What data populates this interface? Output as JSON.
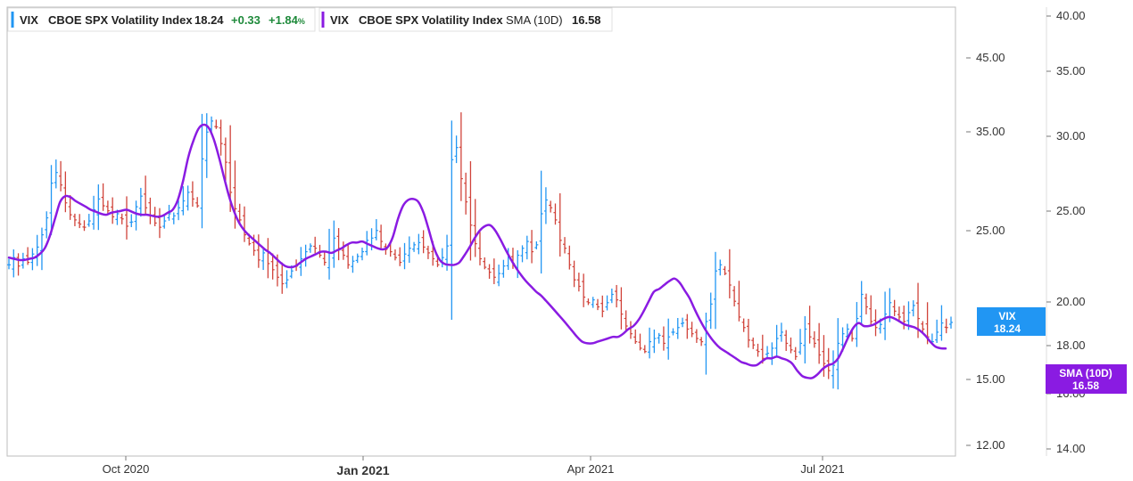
{
  "legend": {
    "vix": {
      "symbol": "VIX",
      "name": "CBOE SPX Volatility Index",
      "last": "18.24",
      "change": "+0.33",
      "change_pct": "+1.84",
      "pct_sign": "%",
      "color": "#2196f3"
    },
    "sma": {
      "symbol": "VIX",
      "name": "CBOE SPX Volatility Index",
      "indicator": "SMA (10D)",
      "value": "16.58",
      "color": "#8a1be2"
    }
  },
  "badges": {
    "vix": {
      "label": "VIX",
      "value": "18.24",
      "color": "#2196f3"
    },
    "sma": {
      "label": "SMA (10D)",
      "value": "16.58",
      "color": "#8a1be2"
    }
  },
  "chart_data": {
    "type": "line",
    "title": "",
    "xlabel": "",
    "ylabel": "",
    "x_ticks": [
      "Oct 2020",
      "Jan 2021",
      "Apr 2021",
      "Jul 2021"
    ],
    "y_ticks_inner": [
      "45.00",
      "35.00",
      "25.00",
      "15.00",
      "12.00"
    ],
    "y_ticks_outer": [
      "40.00",
      "35.00",
      "30.00",
      "25.00",
      "20.00",
      "18.00",
      "16.00",
      "14.00"
    ],
    "y_scale": "log",
    "ylim": [
      11.5,
      55
    ],
    "up_color": "#2196f3",
    "down_color": "#d0433a",
    "sma_color": "#8a1be2",
    "series": [
      {
        "type": "ohlc-close",
        "values": [
          22.5,
          23.1,
          22.4,
          23.0,
          22.7,
          23.4,
          24.0,
          25.1,
          26.7,
          30.3,
          31.5,
          30.1,
          28.2,
          27.0,
          26.5,
          26.1,
          25.8,
          26.4,
          27.5,
          28.6,
          27.9,
          27.4,
          26.8,
          27.1,
          26.6,
          25.9,
          26.3,
          27.8,
          28.9,
          27.7,
          26.9,
          26.2,
          25.8,
          26.4,
          27.1,
          26.9,
          27.7,
          28.4,
          29.3,
          28.6,
          27.9,
          33.1,
          36.5,
          38.0,
          37.2,
          35.0,
          32.7,
          29.3,
          27.6,
          26.5,
          25.1,
          24.3,
          23.7,
          22.9,
          23.5,
          22.6,
          22.1,
          21.5,
          21.0,
          21.3,
          22.0,
          22.4,
          23.0,
          23.6,
          24.1,
          23.9,
          23.3,
          22.7,
          23.5,
          24.8,
          23.9,
          23.3,
          22.5,
          22.8,
          23.2,
          23.6,
          24.6,
          24.8,
          25.5,
          24.5,
          23.8,
          23.6,
          23.1,
          22.7,
          23.4,
          23.9,
          24.2,
          24.4,
          24.0,
          23.5,
          23.0,
          22.5,
          23.1,
          24.1,
          33.0,
          34.5,
          30.8,
          28.3,
          26.0,
          24.3,
          23.0,
          22.3,
          21.9,
          21.5,
          21.8,
          22.4,
          23.1,
          22.6,
          23.3,
          23.9,
          24.5,
          23.6,
          24.2,
          27.1,
          28.5,
          27.7,
          26.5,
          24.6,
          23.9,
          22.5,
          21.3,
          20.8,
          20.0,
          19.6,
          19.8,
          19.3,
          19.0,
          19.6,
          20.2,
          19.8,
          18.8,
          18.0,
          17.5,
          17.0,
          16.6,
          16.4,
          17.0,
          17.2,
          17.4,
          16.9,
          17.3,
          17.6,
          17.9,
          18.2,
          17.8,
          17.5,
          17.2,
          17.0,
          18.3,
          19.5,
          22.0,
          22.5,
          21.8,
          20.9,
          19.7,
          18.6,
          17.9,
          17.1,
          16.8,
          16.4,
          16.0,
          16.3,
          16.6,
          17.2,
          17.6,
          16.9,
          16.5,
          16.1,
          16.9,
          17.8,
          17.3,
          16.9,
          16.2,
          15.7,
          15.3,
          15.6,
          16.9,
          17.5,
          17.8,
          17.2,
          18.5,
          20.2,
          19.3,
          18.3,
          17.9,
          18.1,
          18.8,
          19.6,
          19.0,
          18.6,
          18.3,
          18.9,
          19.4,
          18.5,
          17.8,
          17.3,
          17.0,
          17.6,
          18.2,
          17.9,
          18.24
        ]
      },
      {
        "name": "SMA (10D)",
        "values": [
          23.1,
          23.0,
          22.9,
          22.9,
          23.0,
          23.1,
          23.4,
          23.9,
          25.0,
          26.6,
          28.3,
          28.9,
          28.8,
          28.4,
          28.1,
          27.8,
          27.5,
          27.3,
          27.1,
          27.0,
          27.2,
          27.3,
          27.4,
          27.5,
          27.3,
          27.1,
          27.0,
          27.0,
          26.9,
          26.8,
          26.9,
          27.2,
          27.5,
          28.5,
          30.5,
          33.2,
          35.3,
          36.9,
          37.5,
          37.1,
          35.6,
          33.4,
          31.0,
          28.9,
          27.3,
          26.2,
          25.5,
          25.0,
          24.6,
          24.2,
          23.8,
          23.5,
          23.1,
          22.7,
          22.4,
          22.3,
          22.4,
          22.7,
          23.0,
          23.2,
          23.4,
          23.6,
          23.6,
          23.5,
          23.7,
          23.9,
          24.2,
          24.4,
          24.4,
          24.5,
          24.3,
          24.1,
          23.9,
          23.8,
          24.0,
          24.9,
          26.6,
          27.9,
          28.5,
          28.6,
          28.3,
          27.2,
          25.6,
          24.0,
          23.0,
          22.6,
          22.5,
          22.5,
          22.7,
          23.3,
          24.0,
          24.8,
          25.5,
          25.9,
          26.0,
          25.5,
          24.7,
          23.8,
          23.0,
          22.3,
          21.7,
          21.2,
          20.8,
          20.4,
          20.1,
          19.7,
          19.3,
          18.9,
          18.5,
          18.1,
          17.7,
          17.3,
          17.0,
          16.9,
          16.9,
          17.0,
          17.1,
          17.2,
          17.3,
          17.3,
          17.5,
          17.8,
          18.0,
          18.4,
          19.0,
          19.7,
          20.4,
          20.6,
          20.9,
          21.2,
          21.4,
          21.1,
          20.5,
          19.9,
          19.1,
          18.4,
          17.8,
          17.3,
          16.9,
          16.6,
          16.4,
          16.2,
          16.0,
          15.8,
          15.7,
          15.6,
          15.6,
          15.8,
          16.0,
          16.0,
          16.1,
          16.0,
          15.9,
          15.7,
          15.3,
          15.0,
          14.9,
          14.9,
          15.1,
          15.4,
          15.6,
          15.7,
          16.0,
          16.6,
          17.3,
          17.9,
          18.2,
          18.0,
          18.0,
          18.1,
          18.3,
          18.5,
          18.6,
          18.5,
          18.3,
          18.1,
          18.0,
          17.9,
          17.7,
          17.4,
          17.0,
          16.7,
          16.6,
          16.58
        ]
      }
    ]
  }
}
